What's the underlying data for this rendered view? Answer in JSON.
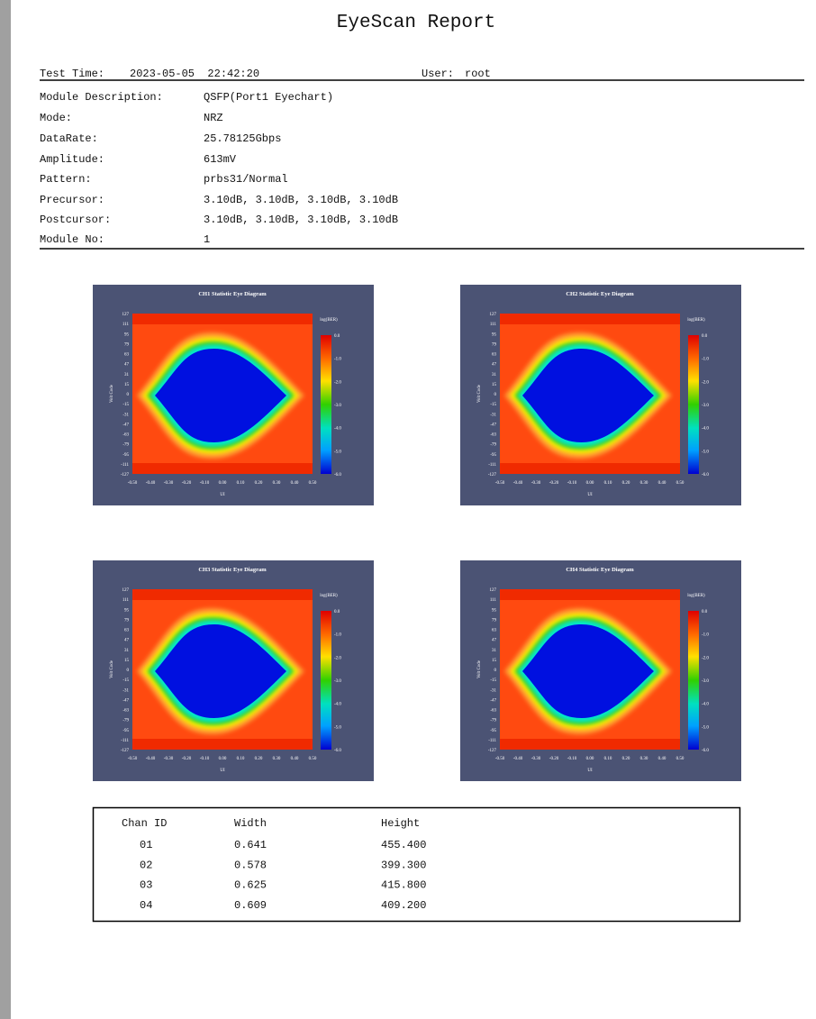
{
  "header": {
    "title": "EyeScan Report",
    "test_time_label": "Test Time:",
    "test_time": "2023-05-05  22:42:20",
    "user_label": "User:",
    "user": "root"
  },
  "info": [
    [
      "Module Description:",
      "QSFP(Port1 Eyechart)"
    ],
    [
      "Mode:",
      "NRZ"
    ],
    [
      "DataRate:",
      "25.78125Gbps"
    ],
    [
      "Amplitude:",
      "613mV"
    ],
    [
      "Pattern:",
      "prbs31/Normal"
    ],
    [
      "Precursor:",
      "3.10dB, 3.10dB, 3.10dB, 3.10dB"
    ],
    [
      "Postcursor:",
      "3.10dB, 3.10dB, 3.10dB, 3.10dB"
    ],
    [
      "Module No:",
      "1"
    ]
  ],
  "eye_axes": {
    "y_label": "Volt Code",
    "x_label": "UI",
    "colorbar_label": "log(BER)",
    "yticks": [
      "127",
      "111",
      "95",
      "79",
      "63",
      "47",
      "31",
      "15",
      "0",
      "-15",
      "-31",
      "-47",
      "-63",
      "-79",
      "-95",
      "-111",
      "-127"
    ],
    "xticks": [
      "-0.50",
      "-0.40",
      "-0.30",
      "-0.20",
      "-0.10",
      "0.00",
      "0.10",
      "0.20",
      "0.30",
      "0.40",
      "0.50"
    ],
    "colorbar_ticks": [
      "0.0",
      "-1.0",
      "-2.0",
      "-3.0",
      "-4.0",
      "-5.0",
      "-6.0"
    ]
  },
  "charts": [
    {
      "title": "CH1   Statistic Eye Diagram"
    },
    {
      "title": "CH2   Statistic Eye Diagram"
    },
    {
      "title": "CH3   Statistic Eye Diagram"
    },
    {
      "title": "CH4   Statistic Eye Diagram"
    }
  ],
  "table": {
    "header": [
      "Chan ID",
      "Width",
      "Height"
    ],
    "rows": [
      [
        "01",
        "0.641",
        "455.400"
      ],
      [
        "02",
        "0.578",
        "399.300"
      ],
      [
        "03",
        "0.625",
        "415.800"
      ],
      [
        "04",
        "0.609",
        "409.200"
      ]
    ]
  }
}
